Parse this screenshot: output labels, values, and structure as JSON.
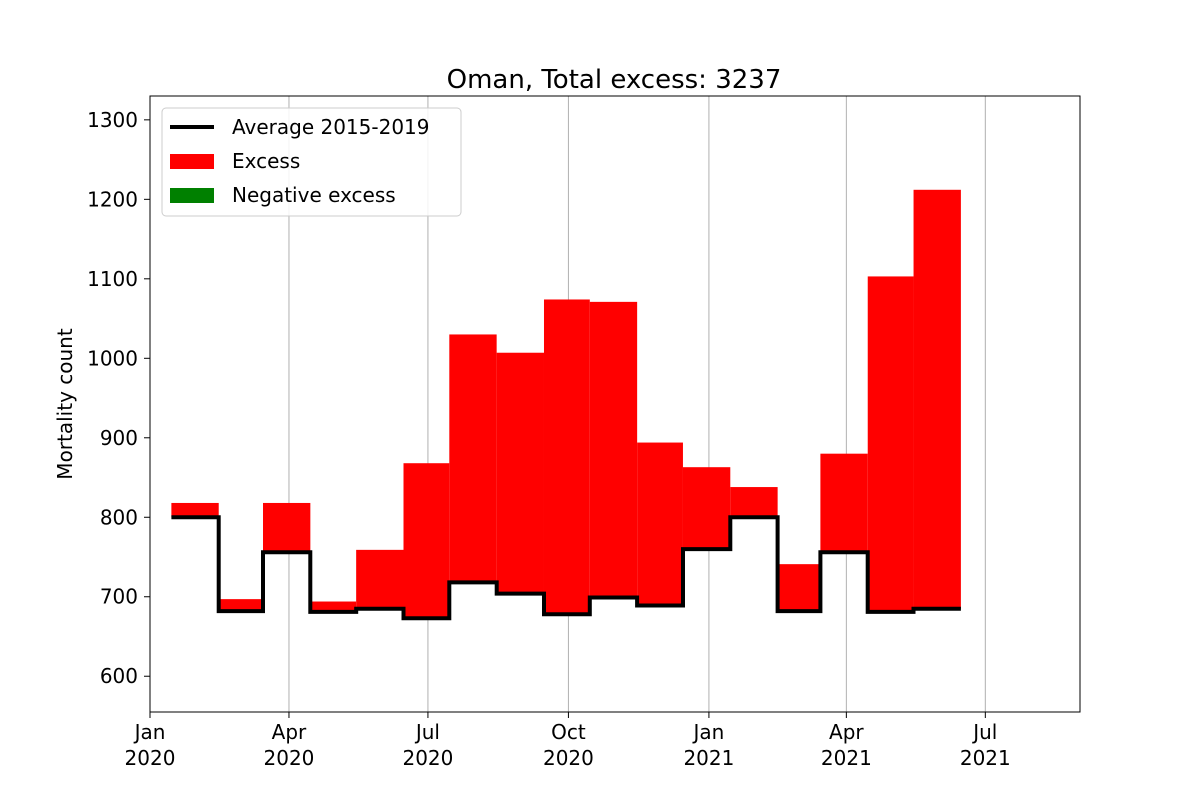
{
  "chart_data": {
    "type": "area",
    "title": "Oman, Total excess: 3237",
    "xlabel": "",
    "ylabel": "Mortality count",
    "ylim": [
      555,
      1330
    ],
    "xlim": [
      "2020-01-01",
      "2021-09-01"
    ],
    "yticks": [
      600,
      700,
      800,
      900,
      1000,
      1100,
      1200,
      1300
    ],
    "xticks": [
      {
        "date": "2020-01-01",
        "line1": "Jan",
        "line2": "2020"
      },
      {
        "date": "2020-04-01",
        "line1": "Apr",
        "line2": "2020"
      },
      {
        "date": "2020-07-01",
        "line1": "Jul",
        "line2": "2020"
      },
      {
        "date": "2020-10-01",
        "line1": "Oct",
        "line2": "2020"
      },
      {
        "date": "2021-01-01",
        "line1": "Jan",
        "line2": "2021"
      },
      {
        "date": "2021-04-01",
        "line1": "Apr",
        "line2": "2021"
      },
      {
        "date": "2021-07-01",
        "line1": "Jul",
        "line2": "2021"
      }
    ],
    "grid": "vertical",
    "legend_position": "top-left",
    "legend": [
      {
        "label": "Average 2015-2019",
        "kind": "line",
        "color": "#000000"
      },
      {
        "label": "Excess",
        "kind": "patch",
        "color": "#ff0000"
      },
      {
        "label": "Negative excess",
        "kind": "patch",
        "color": "#008000"
      }
    ],
    "colors": {
      "baseline": "#000000",
      "excess": "#ff0000",
      "negative": "#008000",
      "grid": "#b0b0b0"
    },
    "periods": [
      {
        "start": "2020-01-15",
        "end": "2020-02-15",
        "baseline": 800,
        "actual": 818
      },
      {
        "start": "2020-02-15",
        "end": "2020-03-15",
        "baseline": 682,
        "actual": 697
      },
      {
        "start": "2020-03-15",
        "end": "2020-04-15",
        "baseline": 756,
        "actual": 818
      },
      {
        "start": "2020-04-15",
        "end": "2020-05-15",
        "baseline": 681,
        "actual": 694
      },
      {
        "start": "2020-05-15",
        "end": "2020-06-15",
        "baseline": 685,
        "actual": 759
      },
      {
        "start": "2020-06-15",
        "end": "2020-07-15",
        "baseline": 673,
        "actual": 868
      },
      {
        "start": "2020-07-15",
        "end": "2020-08-15",
        "baseline": 718,
        "actual": 1030
      },
      {
        "start": "2020-08-15",
        "end": "2020-09-15",
        "baseline": 704,
        "actual": 1007
      },
      {
        "start": "2020-09-15",
        "end": "2020-10-15",
        "baseline": 678,
        "actual": 1074
      },
      {
        "start": "2020-10-15",
        "end": "2020-11-15",
        "baseline": 699,
        "actual": 1071
      },
      {
        "start": "2020-11-15",
        "end": "2020-12-15",
        "baseline": 689,
        "actual": 894
      },
      {
        "start": "2020-12-15",
        "end": "2021-01-15",
        "baseline": 760,
        "actual": 863
      },
      {
        "start": "2021-01-15",
        "end": "2021-02-15",
        "baseline": 800,
        "actual": 838
      },
      {
        "start": "2021-02-15",
        "end": "2021-03-15",
        "baseline": 682,
        "actual": 741
      },
      {
        "start": "2021-03-15",
        "end": "2021-04-15",
        "baseline": 756,
        "actual": 880
      },
      {
        "start": "2021-04-15",
        "end": "2021-05-15",
        "baseline": 681,
        "actual": 1103
      },
      {
        "start": "2021-05-15",
        "end": "2021-06-15",
        "baseline": 685,
        "actual": 1212
      }
    ]
  }
}
